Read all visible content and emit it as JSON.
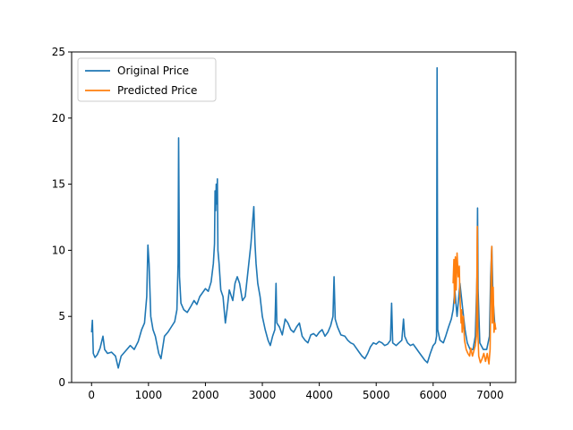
{
  "chart_data": {
    "type": "line",
    "title": "",
    "xlabel": "",
    "ylabel": "",
    "xlim": [
      -350,
      7450
    ],
    "ylim": [
      0,
      25
    ],
    "xticks": [
      0,
      1000,
      2000,
      3000,
      4000,
      5000,
      6000,
      7000
    ],
    "yticks": [
      0,
      5,
      10,
      15,
      20,
      25
    ],
    "grid": false,
    "legend": {
      "placement": "top-left"
    },
    "series": [
      {
        "name": "Original Price",
        "color": "#1f77b4",
        "points": [
          [
            0,
            3.8
          ],
          [
            15,
            4.7
          ],
          [
            30,
            2.2
          ],
          [
            60,
            1.9
          ],
          [
            100,
            2.1
          ],
          [
            150,
            2.6
          ],
          [
            200,
            3.5
          ],
          [
            230,
            2.5
          ],
          [
            280,
            2.2
          ],
          [
            350,
            2.3
          ],
          [
            420,
            2.0
          ],
          [
            470,
            1.1
          ],
          [
            520,
            2.0
          ],
          [
            600,
            2.4
          ],
          [
            680,
            2.8
          ],
          [
            750,
            2.5
          ],
          [
            820,
            3.1
          ],
          [
            880,
            4.0
          ],
          [
            930,
            4.5
          ],
          [
            970,
            6.5
          ],
          [
            990,
            10.4
          ],
          [
            1010,
            9.0
          ],
          [
            1040,
            5.0
          ],
          [
            1080,
            4.0
          ],
          [
            1120,
            3.5
          ],
          [
            1180,
            2.2
          ],
          [
            1220,
            1.8
          ],
          [
            1280,
            3.5
          ],
          [
            1340,
            3.8
          ],
          [
            1400,
            4.2
          ],
          [
            1460,
            4.6
          ],
          [
            1500,
            5.5
          ],
          [
            1520,
            9.0
          ],
          [
            1530,
            18.5
          ],
          [
            1545,
            8.0
          ],
          [
            1570,
            6.0
          ],
          [
            1620,
            5.5
          ],
          [
            1680,
            5.3
          ],
          [
            1750,
            5.8
          ],
          [
            1800,
            6.2
          ],
          [
            1850,
            5.9
          ],
          [
            1900,
            6.5
          ],
          [
            1950,
            6.8
          ],
          [
            2000,
            7.1
          ],
          [
            2050,
            6.9
          ],
          [
            2100,
            7.6
          ],
          [
            2140,
            9.0
          ],
          [
            2160,
            10.5
          ],
          [
            2170,
            14.5
          ],
          [
            2180,
            13.0
          ],
          [
            2190,
            15.0
          ],
          [
            2200,
            13.5
          ],
          [
            2210,
            15.4
          ],
          [
            2220,
            10.0
          ],
          [
            2240,
            9.0
          ],
          [
            2270,
            7.0
          ],
          [
            2310,
            6.5
          ],
          [
            2350,
            4.5
          ],
          [
            2380,
            5.5
          ],
          [
            2420,
            7.0
          ],
          [
            2480,
            6.2
          ],
          [
            2520,
            7.5
          ],
          [
            2560,
            8.0
          ],
          [
            2600,
            7.5
          ],
          [
            2650,
            6.2
          ],
          [
            2700,
            6.5
          ],
          [
            2750,
            8.5
          ],
          [
            2800,
            10.5
          ],
          [
            2830,
            12.2
          ],
          [
            2850,
            13.3
          ],
          [
            2870,
            10.5
          ],
          [
            2890,
            9.0
          ],
          [
            2920,
            7.5
          ],
          [
            2960,
            6.5
          ],
          [
            3000,
            5.0
          ],
          [
            3050,
            4.0
          ],
          [
            3100,
            3.2
          ],
          [
            3140,
            2.8
          ],
          [
            3180,
            3.5
          ],
          [
            3220,
            4.0
          ],
          [
            3240,
            7.5
          ],
          [
            3255,
            4.5
          ],
          [
            3300,
            4.2
          ],
          [
            3350,
            3.6
          ],
          [
            3400,
            4.8
          ],
          [
            3450,
            4.5
          ],
          [
            3500,
            4.0
          ],
          [
            3550,
            3.8
          ],
          [
            3600,
            4.2
          ],
          [
            3650,
            4.5
          ],
          [
            3700,
            3.5
          ],
          [
            3750,
            3.2
          ],
          [
            3800,
            3.0
          ],
          [
            3850,
            3.6
          ],
          [
            3900,
            3.7
          ],
          [
            3950,
            3.5
          ],
          [
            4000,
            3.8
          ],
          [
            4050,
            4.0
          ],
          [
            4100,
            3.5
          ],
          [
            4150,
            3.8
          ],
          [
            4200,
            4.3
          ],
          [
            4240,
            5.0
          ],
          [
            4260,
            8.0
          ],
          [
            4280,
            4.8
          ],
          [
            4320,
            4.2
          ],
          [
            4380,
            3.6
          ],
          [
            4450,
            3.5
          ],
          [
            4500,
            3.2
          ],
          [
            4550,
            3.0
          ],
          [
            4600,
            2.9
          ],
          [
            4650,
            2.6
          ],
          [
            4700,
            2.3
          ],
          [
            4750,
            2.0
          ],
          [
            4800,
            1.8
          ],
          [
            4850,
            2.2
          ],
          [
            4900,
            2.7
          ],
          [
            4950,
            3.0
          ],
          [
            5000,
            2.9
          ],
          [
            5050,
            3.1
          ],
          [
            5100,
            3.0
          ],
          [
            5150,
            2.8
          ],
          [
            5200,
            2.9
          ],
          [
            5250,
            3.2
          ],
          [
            5270,
            6.0
          ],
          [
            5290,
            3.0
          ],
          [
            5350,
            2.8
          ],
          [
            5400,
            3.0
          ],
          [
            5450,
            3.2
          ],
          [
            5480,
            4.8
          ],
          [
            5500,
            3.5
          ],
          [
            5550,
            3.0
          ],
          [
            5600,
            2.8
          ],
          [
            5650,
            2.9
          ],
          [
            5700,
            2.6
          ],
          [
            5750,
            2.3
          ],
          [
            5800,
            2.0
          ],
          [
            5850,
            1.7
          ],
          [
            5900,
            1.5
          ],
          [
            5950,
            2.2
          ],
          [
            6000,
            2.8
          ],
          [
            6040,
            3.0
          ],
          [
            6060,
            3.5
          ],
          [
            6070,
            23.8
          ],
          [
            6080,
            4.0
          ],
          [
            6120,
            3.2
          ],
          [
            6180,
            3.0
          ],
          [
            6220,
            3.5
          ],
          [
            6270,
            4.2
          ],
          [
            6320,
            4.8
          ],
          [
            6350,
            5.5
          ],
          [
            6380,
            7.0
          ],
          [
            6420,
            5.0
          ],
          [
            6470,
            7.5
          ],
          [
            6520,
            5.5
          ],
          [
            6560,
            4.0
          ],
          [
            6600,
            3.0
          ],
          [
            6650,
            2.5
          ],
          [
            6700,
            2.5
          ],
          [
            6740,
            3.5
          ],
          [
            6770,
            8.0
          ],
          [
            6780,
            13.2
          ],
          [
            6790,
            7.0
          ],
          [
            6820,
            3.0
          ],
          [
            6880,
            2.5
          ],
          [
            6940,
            2.5
          ],
          [
            6990,
            3.5
          ],
          [
            7010,
            8.0
          ],
          [
            7030,
            10.3
          ],
          [
            7050,
            6.5
          ],
          [
            7080,
            4.5
          ],
          [
            7100,
            4.0
          ]
        ]
      },
      {
        "name": "Predicted Price",
        "color": "#ff7f0e",
        "points": [
          [
            6350,
            7.5
          ],
          [
            6365,
            9.3
          ],
          [
            6375,
            6.0
          ],
          [
            6390,
            9.5
          ],
          [
            6405,
            7.0
          ],
          [
            6420,
            9.8
          ],
          [
            6440,
            8.0
          ],
          [
            6460,
            8.8
          ],
          [
            6470,
            6.5
          ],
          [
            6490,
            4.5
          ],
          [
            6500,
            5.5
          ],
          [
            6510,
            3.8
          ],
          [
            6530,
            5.0
          ],
          [
            6550,
            3.2
          ],
          [
            6580,
            2.5
          ],
          [
            6610,
            2.2
          ],
          [
            6640,
            2.0
          ],
          [
            6660,
            2.6
          ],
          [
            6690,
            2.0
          ],
          [
            6710,
            2.3
          ],
          [
            6740,
            2.8
          ],
          [
            6760,
            3.5
          ],
          [
            6775,
            11.8
          ],
          [
            6785,
            4.0
          ],
          [
            6800,
            2.0
          ],
          [
            6830,
            1.5
          ],
          [
            6860,
            1.8
          ],
          [
            6890,
            2.2
          ],
          [
            6920,
            1.6
          ],
          [
            6950,
            2.2
          ],
          [
            6980,
            1.4
          ],
          [
            7000,
            2.5
          ],
          [
            7020,
            9.0
          ],
          [
            7030,
            10.3
          ],
          [
            7040,
            4.5
          ],
          [
            7055,
            7.2
          ],
          [
            7070,
            3.8
          ],
          [
            7085,
            4.5
          ],
          [
            7100,
            4.0
          ]
        ]
      }
    ]
  }
}
